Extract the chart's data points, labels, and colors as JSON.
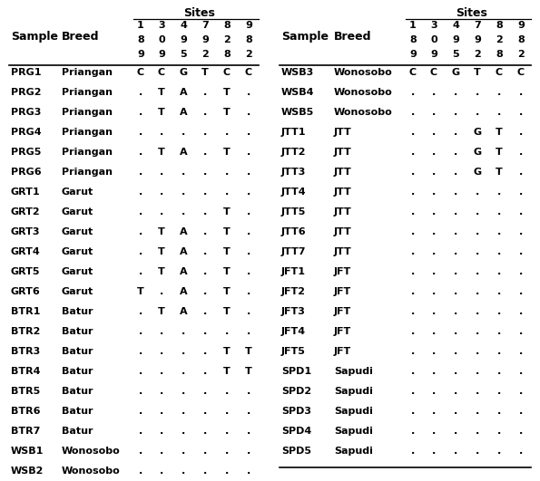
{
  "col_header_lines": [
    [
      "1",
      "3",
      "4",
      "7",
      "8",
      "9"
    ],
    [
      "8",
      "0",
      "9",
      "9",
      "2",
      "8"
    ],
    [
      "9",
      "9",
      "5",
      "2",
      "8",
      "2"
    ]
  ],
  "left_table_rows": [
    [
      "PRG1",
      "Priangan",
      "C",
      "C",
      "G",
      "T",
      "C",
      "C"
    ],
    [
      "PRG2",
      "Priangan",
      ".",
      "T",
      "A",
      ".",
      "T",
      "."
    ],
    [
      "PRG3",
      "Priangan",
      ".",
      "T",
      "A",
      ".",
      "T",
      "."
    ],
    [
      "PRG4",
      "Priangan",
      ".",
      ".",
      ".",
      ".",
      ".",
      "."
    ],
    [
      "PRG5",
      "Priangan",
      ".",
      "T",
      "A",
      ".",
      "T",
      "."
    ],
    [
      "PRG6",
      "Priangan",
      ".",
      ".",
      ".",
      ".",
      ".",
      "."
    ],
    [
      "GRT1",
      "Garut",
      ".",
      ".",
      ".",
      ".",
      ".",
      "."
    ],
    [
      "GRT2",
      "Garut",
      ".",
      ".",
      ".",
      ".",
      "T",
      "."
    ],
    [
      "GRT3",
      "Garut",
      ".",
      "T",
      "A",
      ".",
      "T",
      "."
    ],
    [
      "GRT4",
      "Garut",
      ".",
      "T",
      "A",
      ".",
      "T",
      "."
    ],
    [
      "GRT5",
      "Garut",
      ".",
      "T",
      "A",
      ".",
      "T",
      "."
    ],
    [
      "GRT6",
      "Garut",
      "T",
      ".",
      "A",
      ".",
      "T",
      "."
    ],
    [
      "BTR1",
      "Batur",
      ".",
      "T",
      "A",
      ".",
      "T",
      "."
    ],
    [
      "BTR2",
      "Batur",
      ".",
      ".",
      ".",
      ".",
      ".",
      "."
    ],
    [
      "BTR3",
      "Batur",
      ".",
      ".",
      ".",
      ".",
      "T",
      "T"
    ],
    [
      "BTR4",
      "Batur",
      ".",
      ".",
      ".",
      ".",
      "T",
      "T"
    ],
    [
      "BTR5",
      "Batur",
      ".",
      ".",
      ".",
      ".",
      ".",
      "."
    ],
    [
      "BTR6",
      "Batur",
      ".",
      ".",
      ".",
      ".",
      ".",
      "."
    ],
    [
      "BTR7",
      "Batur",
      ".",
      ".",
      ".",
      ".",
      ".",
      "."
    ],
    [
      "WSB1",
      "Wonosobo",
      ".",
      ".",
      ".",
      ".",
      ".",
      "."
    ],
    [
      "WSB2",
      "Wonosobo",
      ".",
      ".",
      ".",
      ".",
      ".",
      "."
    ]
  ],
  "right_table_rows": [
    [
      "WSB3",
      "Wonosobo",
      "C",
      "C",
      "G",
      "T",
      "C",
      "C"
    ],
    [
      "WSB4",
      "Wonosobo",
      ".",
      ".",
      ".",
      ".",
      ".",
      "."
    ],
    [
      "WSB5",
      "Wonosobo",
      ".",
      ".",
      ".",
      ".",
      ".",
      "."
    ],
    [
      "JTT1",
      "JTT",
      ".",
      ".",
      ".",
      "G",
      "T",
      "."
    ],
    [
      "JTT2",
      "JTT",
      ".",
      ".",
      ".",
      "G",
      "T",
      "."
    ],
    [
      "JTT3",
      "JTT",
      ".",
      ".",
      ".",
      "G",
      "T",
      "."
    ],
    [
      "JTT4",
      "JTT",
      ".",
      ".",
      ".",
      ".",
      ".",
      "."
    ],
    [
      "JTT5",
      "JTT",
      ".",
      ".",
      ".",
      ".",
      ".",
      "."
    ],
    [
      "JTT6",
      "JTT",
      ".",
      ".",
      ".",
      ".",
      ".",
      "."
    ],
    [
      "JTT7",
      "JTT",
      ".",
      ".",
      ".",
      ".",
      ".",
      "."
    ],
    [
      "JFT1",
      "JFT",
      ".",
      ".",
      ".",
      ".",
      ".",
      "."
    ],
    [
      "JFT2",
      "JFT",
      ".",
      ".",
      ".",
      ".",
      ".",
      "."
    ],
    [
      "JFT3",
      "JFT",
      ".",
      ".",
      ".",
      ".",
      ".",
      "."
    ],
    [
      "JFT4",
      "JFT",
      ".",
      ".",
      ".",
      ".",
      ".",
      "."
    ],
    [
      "JFT5",
      "JFT",
      ".",
      ".",
      ".",
      ".",
      ".",
      "."
    ],
    [
      "SPD1",
      "Sapudi",
      ".",
      ".",
      ".",
      ".",
      ".",
      "."
    ],
    [
      "SPD2",
      "Sapudi",
      ".",
      ".",
      ".",
      ".",
      ".",
      "."
    ],
    [
      "SPD3",
      "Sapudi",
      ".",
      ".",
      ".",
      ".",
      ".",
      "."
    ],
    [
      "SPD4",
      "Sapudi",
      ".",
      ".",
      ".",
      ".",
      ".",
      "."
    ],
    [
      "SPD5",
      "Sapudi",
      ".",
      ".",
      ".",
      ".",
      ".",
      "."
    ]
  ],
  "bg_color": "#ffffff",
  "text_color": "#000000",
  "font_size": 8.0,
  "bold_font_size": 9.0
}
